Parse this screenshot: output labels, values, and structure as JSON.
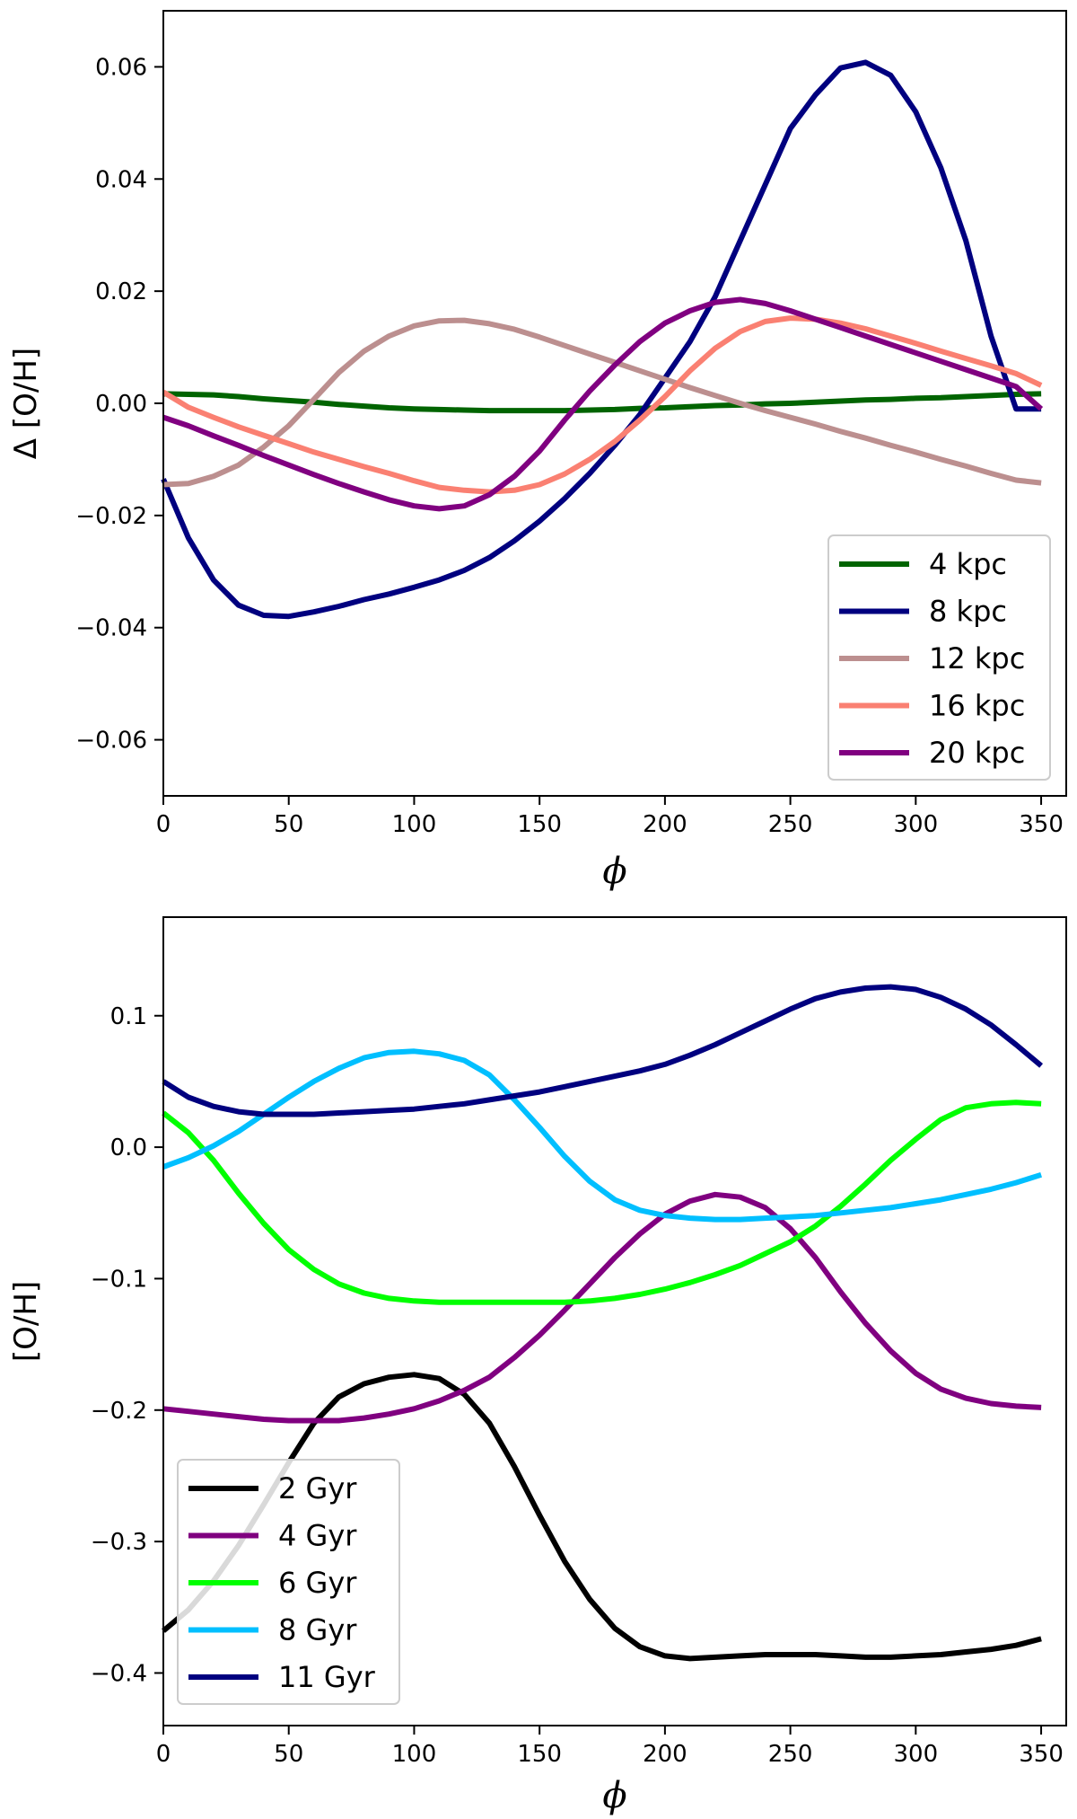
{
  "chart_data": [
    {
      "type": "line",
      "title": "",
      "xlabel": "ϕ",
      "ylabel": "Δ [O/H]",
      "xlim": [
        0,
        360
      ],
      "ylim": [
        -0.07,
        0.07
      ],
      "xticks": [
        0,
        50,
        100,
        150,
        200,
        250,
        300,
        350
      ],
      "xtick_labels": [
        "0",
        "50",
        "100",
        "150",
        "200",
        "250",
        "300",
        "350"
      ],
      "yticks": [
        -0.06,
        -0.04,
        -0.02,
        0.0,
        0.02,
        0.04,
        0.06
      ],
      "ytick_labels": [
        "−0.06",
        "−0.04",
        "−0.02",
        "0.00",
        "0.02",
        "0.04",
        "0.06"
      ],
      "grid": false,
      "legend_position": "lower-right",
      "x": [
        0,
        10,
        20,
        30,
        40,
        50,
        60,
        70,
        80,
        90,
        100,
        110,
        120,
        130,
        140,
        150,
        160,
        170,
        180,
        190,
        200,
        210,
        220,
        230,
        240,
        250,
        260,
        270,
        280,
        290,
        300,
        310,
        320,
        330,
        340,
        350
      ],
      "series": [
        {
          "name": "4 kpc",
          "color": "#006400",
          "values": [
            0.0017,
            0.0016,
            0.0015,
            0.0012,
            0.0008,
            0.0005,
            0.0002,
            -0.0002,
            -0.0005,
            -0.0008,
            -0.001,
            -0.0011,
            -0.0012,
            -0.0013,
            -0.0013,
            -0.0013,
            -0.0013,
            -0.0012,
            -0.0011,
            -0.0009,
            -0.0008,
            -0.0006,
            -0.0004,
            -0.0003,
            -0.0001,
            0.0,
            0.0002,
            0.0004,
            0.0006,
            0.0007,
            0.0009,
            0.001,
            0.0012,
            0.0014,
            0.0016,
            0.0017
          ]
        },
        {
          "name": "8 kpc",
          "color": "#00007F",
          "values": [
            -0.0135,
            -0.024,
            -0.0315,
            -0.036,
            -0.0378,
            -0.038,
            -0.0372,
            -0.0362,
            -0.035,
            -0.034,
            -0.0328,
            -0.0315,
            -0.0298,
            -0.0275,
            -0.0245,
            -0.021,
            -0.017,
            -0.0125,
            -0.0075,
            -0.002,
            0.0045,
            0.011,
            0.019,
            0.029,
            0.039,
            0.049,
            0.055,
            0.0598,
            0.0608,
            0.0585,
            0.052,
            0.042,
            0.029,
            0.012,
            -0.001,
            -0.001
          ]
        },
        {
          "name": "12 kpc",
          "color": "#BC8F8F",
          "values": [
            -0.0145,
            -0.0143,
            -0.013,
            -0.011,
            -0.0078,
            -0.004,
            0.0007,
            0.0055,
            0.0093,
            0.012,
            0.0138,
            0.0147,
            0.0148,
            0.0142,
            0.0132,
            0.0118,
            0.0103,
            0.0088,
            0.0073,
            0.0058,
            0.0043,
            0.0028,
            0.0014,
            0.0,
            -0.0013,
            -0.0025,
            -0.0037,
            -0.005,
            -0.0062,
            -0.0075,
            -0.0087,
            -0.01,
            -0.0112,
            -0.0125,
            -0.0137,
            -0.0142
          ]
        },
        {
          "name": "16 kpc",
          "color": "#FA8072",
          "values": [
            0.002,
            -0.0007,
            -0.0025,
            -0.0042,
            -0.0057,
            -0.0072,
            -0.0087,
            -0.01,
            -0.0113,
            -0.0125,
            -0.0138,
            -0.015,
            -0.0155,
            -0.0158,
            -0.0155,
            -0.0145,
            -0.0126,
            -0.01,
            -0.0068,
            -0.003,
            0.0012,
            0.0058,
            0.0098,
            0.0128,
            0.0146,
            0.0152,
            0.015,
            0.0143,
            0.0133,
            0.012,
            0.0107,
            0.0093,
            0.008,
            0.0067,
            0.0053,
            0.0032
          ]
        },
        {
          "name": "20 kpc",
          "color": "#800080",
          "values": [
            -0.0025,
            -0.004,
            -0.0058,
            -0.0075,
            -0.0093,
            -0.011,
            -0.0127,
            -0.0143,
            -0.0158,
            -0.0172,
            -0.0183,
            -0.0188,
            -0.0183,
            -0.0163,
            -0.013,
            -0.0085,
            -0.003,
            0.0022,
            0.0068,
            0.011,
            0.0143,
            0.0165,
            0.018,
            0.0185,
            0.0178,
            0.0165,
            0.015,
            0.0135,
            0.012,
            0.0105,
            0.009,
            0.0075,
            0.006,
            0.0045,
            0.003,
            -0.001
          ]
        }
      ]
    },
    {
      "type": "line",
      "title": "",
      "xlabel": "ϕ",
      "ylabel": "[O/H]",
      "xlim": [
        0,
        360
      ],
      "ylim": [
        -0.44,
        0.175
      ],
      "xticks": [
        0,
        50,
        100,
        150,
        200,
        250,
        300,
        350
      ],
      "xtick_labels": [
        "0",
        "50",
        "100",
        "150",
        "200",
        "250",
        "300",
        "350"
      ],
      "yticks": [
        -0.4,
        -0.3,
        -0.2,
        -0.1,
        0.0,
        0.1
      ],
      "ytick_labels": [
        "−0.4",
        "−0.3",
        "−0.2",
        "−0.1",
        "0.0",
        "0.1"
      ],
      "grid": false,
      "legend_position": "lower-left",
      "x": [
        0,
        10,
        20,
        30,
        40,
        50,
        60,
        70,
        80,
        90,
        100,
        110,
        120,
        130,
        140,
        150,
        160,
        170,
        180,
        190,
        200,
        210,
        220,
        230,
        240,
        250,
        260,
        270,
        280,
        290,
        300,
        310,
        320,
        330,
        340,
        350
      ],
      "series": [
        {
          "name": "2 Gyr",
          "color": "#000000",
          "values": [
            -0.368,
            -0.352,
            -0.33,
            -0.303,
            -0.272,
            -0.24,
            -0.21,
            -0.19,
            -0.18,
            -0.175,
            -0.173,
            -0.176,
            -0.188,
            -0.21,
            -0.243,
            -0.28,
            -0.315,
            -0.344,
            -0.366,
            -0.38,
            -0.387,
            -0.389,
            -0.388,
            -0.387,
            -0.386,
            -0.386,
            -0.386,
            -0.387,
            -0.388,
            -0.388,
            -0.387,
            -0.386,
            -0.384,
            -0.382,
            -0.379,
            -0.374
          ]
        },
        {
          "name": "4 Gyr",
          "color": "#800080",
          "values": [
            -0.199,
            -0.201,
            -0.203,
            -0.205,
            -0.207,
            -0.208,
            -0.208,
            -0.208,
            -0.206,
            -0.203,
            -0.199,
            -0.193,
            -0.185,
            -0.175,
            -0.16,
            -0.143,
            -0.124,
            -0.104,
            -0.084,
            -0.066,
            -0.051,
            -0.041,
            -0.036,
            -0.038,
            -0.046,
            -0.062,
            -0.084,
            -0.11,
            -0.134,
            -0.155,
            -0.172,
            -0.184,
            -0.191,
            -0.195,
            -0.197,
            -0.198
          ]
        },
        {
          "name": "6 Gyr",
          "color": "#00FF00",
          "values": [
            0.026,
            0.011,
            -0.01,
            -0.035,
            -0.058,
            -0.078,
            -0.093,
            -0.104,
            -0.111,
            -0.115,
            -0.117,
            -0.118,
            -0.118,
            -0.118,
            -0.118,
            -0.118,
            -0.118,
            -0.117,
            -0.115,
            -0.112,
            -0.108,
            -0.103,
            -0.097,
            -0.09,
            -0.081,
            -0.072,
            -0.06,
            -0.045,
            -0.028,
            -0.01,
            0.006,
            0.021,
            0.03,
            0.033,
            0.034,
            0.033
          ]
        },
        {
          "name": "8 Gyr",
          "color": "#00BFFF",
          "values": [
            -0.015,
            -0.008,
            0.001,
            0.012,
            0.025,
            0.038,
            0.05,
            0.06,
            0.068,
            0.072,
            0.073,
            0.071,
            0.066,
            0.055,
            0.036,
            0.015,
            -0.007,
            -0.026,
            -0.04,
            -0.048,
            -0.052,
            -0.054,
            -0.055,
            -0.055,
            -0.054,
            -0.053,
            -0.052,
            -0.05,
            -0.048,
            -0.046,
            -0.043,
            -0.04,
            -0.036,
            -0.032,
            -0.027,
            -0.021
          ]
        },
        {
          "name": "11 Gyr",
          "color": "#00007F",
          "values": [
            0.05,
            0.038,
            0.031,
            0.027,
            0.025,
            0.025,
            0.025,
            0.026,
            0.027,
            0.028,
            0.029,
            0.031,
            0.033,
            0.036,
            0.039,
            0.042,
            0.046,
            0.05,
            0.054,
            0.058,
            0.063,
            0.07,
            0.078,
            0.087,
            0.096,
            0.105,
            0.113,
            0.118,
            0.121,
            0.122,
            0.12,
            0.114,
            0.105,
            0.093,
            0.078,
            0.062
          ]
        }
      ]
    }
  ]
}
